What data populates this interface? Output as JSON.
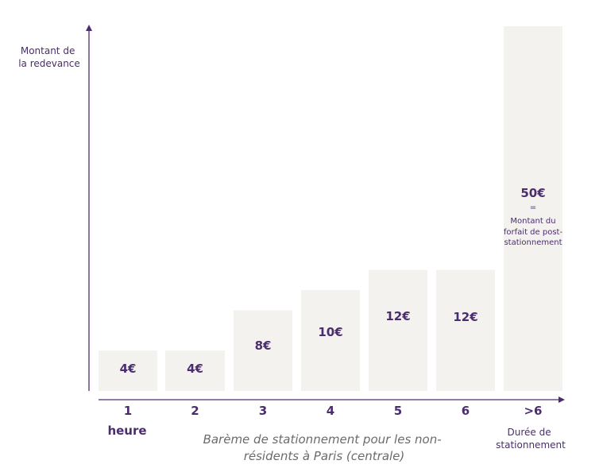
{
  "chart_data": {
    "type": "bar",
    "title": "",
    "ylabel_lines": [
      "Montant de",
      "la redevance"
    ],
    "xlabel_lines": [
      "Durée de",
      "stationnement"
    ],
    "caption_lines": [
      "Barème de stationnement pour les non-",
      "résidents à Paris (centrale)"
    ],
    "categories": [
      "1",
      "2",
      "3",
      "4",
      "5",
      "6",
      ">6"
    ],
    "first_category_unit": "heure",
    "values": [
      4,
      4,
      8,
      10,
      12,
      12,
      50
    ],
    "value_labels": [
      "4€",
      "4€",
      "8€",
      "10€",
      "12€",
      "12€",
      "50€"
    ],
    "last_bar_note": [
      "=",
      "Montant du",
      "forfait de post-",
      "stationnement"
    ],
    "colors": {
      "bar": "#f3f2ef",
      "text": "#4b2d6e",
      "caption": "#6b6b6b"
    }
  }
}
